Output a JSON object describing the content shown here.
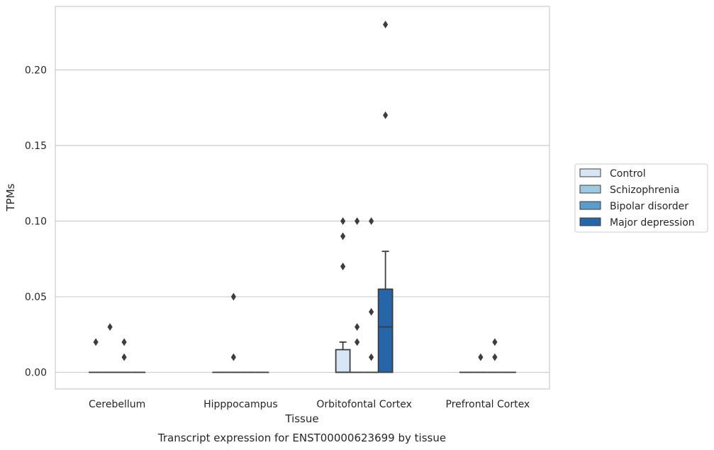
{
  "chart_data": {
    "type": "box",
    "xlabel": "Tissue",
    "ylabel": "TPMs",
    "caption": "Transcript expression for ENST00000623699 by tissue",
    "ylim": [
      -0.011,
      0.242
    ],
    "yticks": [
      0.0,
      0.05,
      0.1,
      0.15,
      0.2
    ],
    "ytick_labels": [
      "0.00",
      "0.05",
      "0.10",
      "0.15",
      "0.20"
    ],
    "grid": "horizontal",
    "legend_position": "right",
    "categories": [
      "Cerebellum",
      "Hipppocampus",
      "Orbitofontal Cortex",
      "Prefrontal Cortex"
    ],
    "series": [
      {
        "name": "Control",
        "color": "#d6e6f4",
        "boxes": [
          {
            "q1": 0,
            "median": 0,
            "q3": 0,
            "whisker_low": 0,
            "whisker_high": 0,
            "outliers": [
              0.02
            ]
          },
          {
            "q1": 0,
            "median": 0,
            "q3": 0,
            "whisker_low": 0,
            "whisker_high": 0,
            "outliers": []
          },
          {
            "q1": 0,
            "median": 0,
            "q3": 0.015,
            "whisker_low": 0,
            "whisker_high": 0.02,
            "outliers": [
              0.07,
              0.09,
              0.1
            ]
          },
          {
            "q1": 0,
            "median": 0,
            "q3": 0,
            "whisker_low": 0,
            "whisker_high": 0,
            "outliers": []
          }
        ]
      },
      {
        "name": "Schizophrenia",
        "color": "#9ecae1",
        "boxes": [
          {
            "q1": 0,
            "median": 0,
            "q3": 0,
            "whisker_low": 0,
            "whisker_high": 0,
            "outliers": [
              0.03
            ]
          },
          {
            "q1": 0,
            "median": 0,
            "q3": 0,
            "whisker_low": 0,
            "whisker_high": 0,
            "outliers": [
              0.01,
              0.05
            ]
          },
          {
            "q1": 0,
            "median": 0,
            "q3": 0,
            "whisker_low": 0,
            "whisker_high": 0,
            "outliers": [
              0.02,
              0.03,
              0.1
            ]
          },
          {
            "q1": 0,
            "median": 0,
            "q3": 0,
            "whisker_low": 0,
            "whisker_high": 0,
            "outliers": [
              0.01
            ]
          }
        ]
      },
      {
        "name": "Bipolar disorder",
        "color": "#5a9ccb",
        "boxes": [
          {
            "q1": 0,
            "median": 0,
            "q3": 0,
            "whisker_low": 0,
            "whisker_high": 0,
            "outliers": [
              0.01,
              0.02
            ]
          },
          {
            "q1": 0,
            "median": 0,
            "q3": 0,
            "whisker_low": 0,
            "whisker_high": 0,
            "outliers": []
          },
          {
            "q1": 0,
            "median": 0,
            "q3": 0,
            "whisker_low": 0,
            "whisker_high": 0,
            "outliers": [
              0.01,
              0.04,
              0.1
            ]
          },
          {
            "q1": 0,
            "median": 0,
            "q3": 0,
            "whisker_low": 0,
            "whisker_high": 0,
            "outliers": [
              0.01,
              0.02
            ]
          }
        ]
      },
      {
        "name": "Major depression",
        "color": "#2565a8",
        "boxes": [
          {
            "q1": 0,
            "median": 0,
            "q3": 0,
            "whisker_low": 0,
            "whisker_high": 0,
            "outliers": []
          },
          {
            "q1": 0,
            "median": 0,
            "q3": 0,
            "whisker_low": 0,
            "whisker_high": 0,
            "outliers": []
          },
          {
            "q1": 0,
            "median": 0.03,
            "q3": 0.055,
            "whisker_low": 0,
            "whisker_high": 0.08,
            "outliers": [
              0.17,
              0.23
            ]
          },
          {
            "q1": 0,
            "median": 0,
            "q3": 0,
            "whisker_low": 0,
            "whisker_high": 0,
            "outliers": []
          }
        ]
      }
    ]
  }
}
